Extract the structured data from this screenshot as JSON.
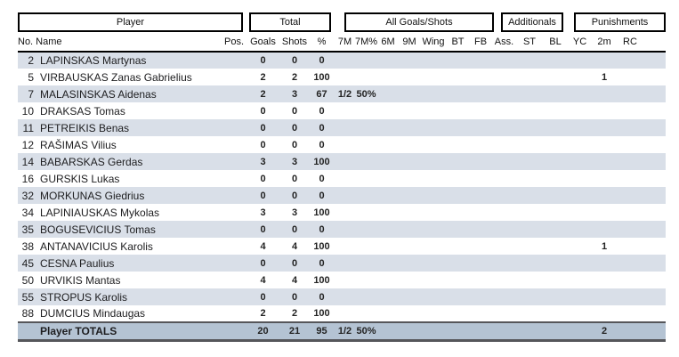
{
  "table": {
    "groups": {
      "player": "Player",
      "total": "Total",
      "all_goals_shots": "All Goals/Shots",
      "additionals": "Additionals",
      "punishments": "Punishments"
    },
    "columns": [
      "No. Name",
      "Pos.",
      "Goals",
      "Shots",
      "%",
      "7M",
      "7M%",
      "6M",
      "9M",
      "Wing",
      "BT",
      "FB",
      "Ass.",
      "ST",
      "BL",
      "YC",
      "2m",
      "RC"
    ],
    "rows": [
      [
        "2",
        "LAPINSKAS Martynas",
        "",
        "0",
        "0",
        "0",
        "",
        "",
        "",
        "",
        "",
        "",
        "",
        "",
        "",
        "",
        "",
        "",
        ""
      ],
      [
        "5",
        "VIRBAUSKAS Zanas Gabrielius",
        "",
        "2",
        "2",
        "100",
        "",
        "",
        "",
        "",
        "",
        "",
        "",
        "",
        "",
        "",
        "",
        "1",
        ""
      ],
      [
        "7",
        "MALASINSKAS Aidenas",
        "",
        "2",
        "3",
        "67",
        "1/2",
        "50%",
        "",
        "",
        "",
        "",
        "",
        "",
        "",
        "",
        "",
        "",
        ""
      ],
      [
        "10",
        "DRAKSAS Tomas",
        "",
        "0",
        "0",
        "0",
        "",
        "",
        "",
        "",
        "",
        "",
        "",
        "",
        "",
        "",
        "",
        "",
        ""
      ],
      [
        "11",
        "PETREIKIS Benas",
        "",
        "0",
        "0",
        "0",
        "",
        "",
        "",
        "",
        "",
        "",
        "",
        "",
        "",
        "",
        "",
        "",
        ""
      ],
      [
        "12",
        "RAŠIMAS Vilius",
        "",
        "0",
        "0",
        "0",
        "",
        "",
        "",
        "",
        "",
        "",
        "",
        "",
        "",
        "",
        "",
        "",
        ""
      ],
      [
        "14",
        "BABARSKAS Gerdas",
        "",
        "3",
        "3",
        "100",
        "",
        "",
        "",
        "",
        "",
        "",
        "",
        "",
        "",
        "",
        "",
        "",
        ""
      ],
      [
        "16",
        "GURSKIS Lukas",
        "",
        "0",
        "0",
        "0",
        "",
        "",
        "",
        "",
        "",
        "",
        "",
        "",
        "",
        "",
        "",
        "",
        ""
      ],
      [
        "32",
        "MORKUNAS Giedrius",
        "",
        "0",
        "0",
        "0",
        "",
        "",
        "",
        "",
        "",
        "",
        "",
        "",
        "",
        "",
        "",
        "",
        ""
      ],
      [
        "34",
        "LAPINIAUSKAS Mykolas",
        "",
        "3",
        "3",
        "100",
        "",
        "",
        "",
        "",
        "",
        "",
        "",
        "",
        "",
        "",
        "",
        "",
        ""
      ],
      [
        "35",
        "BOGUSEVICIUS Tomas",
        "",
        "0",
        "0",
        "0",
        "",
        "",
        "",
        "",
        "",
        "",
        "",
        "",
        "",
        "",
        "",
        "",
        ""
      ],
      [
        "38",
        "ANTANAVICIUS Karolis",
        "",
        "4",
        "4",
        "100",
        "",
        "",
        "",
        "",
        "",
        "",
        "",
        "",
        "",
        "",
        "",
        "1",
        ""
      ],
      [
        "45",
        "CESNA Paulius",
        "",
        "0",
        "0",
        "0",
        "",
        "",
        "",
        "",
        "",
        "",
        "",
        "",
        "",
        "",
        "",
        "",
        ""
      ],
      [
        "50",
        "URVIKIS Mantas",
        "",
        "4",
        "4",
        "100",
        "",
        "",
        "",
        "",
        "",
        "",
        "",
        "",
        "",
        "",
        "",
        "",
        ""
      ],
      [
        "55",
        "STROPUS Karolis",
        "",
        "0",
        "0",
        "0",
        "",
        "",
        "",
        "",
        "",
        "",
        "",
        "",
        "",
        "",
        "",
        "",
        ""
      ],
      [
        "88",
        "DUMCIUS Mindaugas",
        "",
        "2",
        "2",
        "100",
        "",
        "",
        "",
        "",
        "",
        "",
        "",
        "",
        "",
        "",
        "",
        "",
        ""
      ]
    ],
    "totals": [
      "",
      "Player TOTALS",
      "",
      "20",
      "21",
      "95",
      "1/2",
      "50%",
      "",
      "",
      "",
      "",
      "",
      "",
      "",
      "",
      "",
      "2",
      ""
    ],
    "colors": {
      "stripe": "#d9dfe8",
      "totals_bg": "#b4c3d3",
      "totals_border": "#55565a",
      "header_border": "#000000"
    }
  }
}
